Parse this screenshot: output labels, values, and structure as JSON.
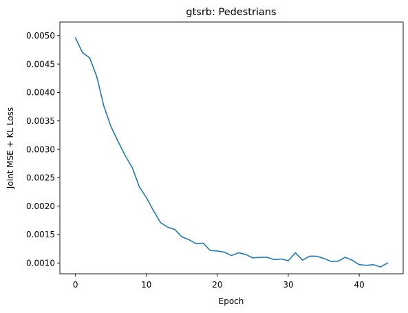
{
  "chart_data": {
    "type": "line",
    "title": "gtsrb: Pedestrians",
    "xlabel": "Epoch",
    "ylabel": "Joint MSE + KL Loss",
    "xlim": [
      -2.2,
      46.2
    ],
    "ylim": [
      0.00081,
      0.00524
    ],
    "xticks": [
      0,
      10,
      20,
      30,
      40
    ],
    "yticks": [
      0.001,
      0.0015,
      0.002,
      0.0025,
      0.003,
      0.0035,
      0.004,
      0.0045,
      0.005
    ],
    "ytick_labels": [
      "0.0010",
      "0.0015",
      "0.0020",
      "0.0025",
      "0.0030",
      "0.0035",
      "0.0040",
      "0.0045",
      "0.0050"
    ],
    "grid": false,
    "line_color": "#1f77b4",
    "x": [
      0,
      1,
      2,
      3,
      4,
      5,
      6,
      7,
      8,
      9,
      10,
      11,
      12,
      13,
      14,
      15,
      16,
      17,
      18,
      19,
      20,
      21,
      22,
      23,
      24,
      25,
      26,
      27,
      28,
      29,
      30,
      31,
      32,
      33,
      34,
      35,
      36,
      37,
      38,
      39,
      40,
      41,
      42,
      43,
      44
    ],
    "y": [
      0.00496,
      0.0047,
      0.00461,
      0.00428,
      0.00376,
      0.0034,
      0.00314,
      0.00289,
      0.00268,
      0.00234,
      0.00215,
      0.00192,
      0.00171,
      0.00163,
      0.00159,
      0.00146,
      0.00141,
      0.00134,
      0.00135,
      0.00122,
      0.00121,
      0.00119,
      0.00113,
      0.00118,
      0.00115,
      0.00109,
      0.0011,
      0.0011,
      0.00106,
      0.00107,
      0.00104,
      0.00118,
      0.00105,
      0.00112,
      0.00112,
      0.00108,
      0.00103,
      0.00103,
      0.0011,
      0.00105,
      0.00097,
      0.00096,
      0.00097,
      0.00093,
      0.001
    ]
  }
}
